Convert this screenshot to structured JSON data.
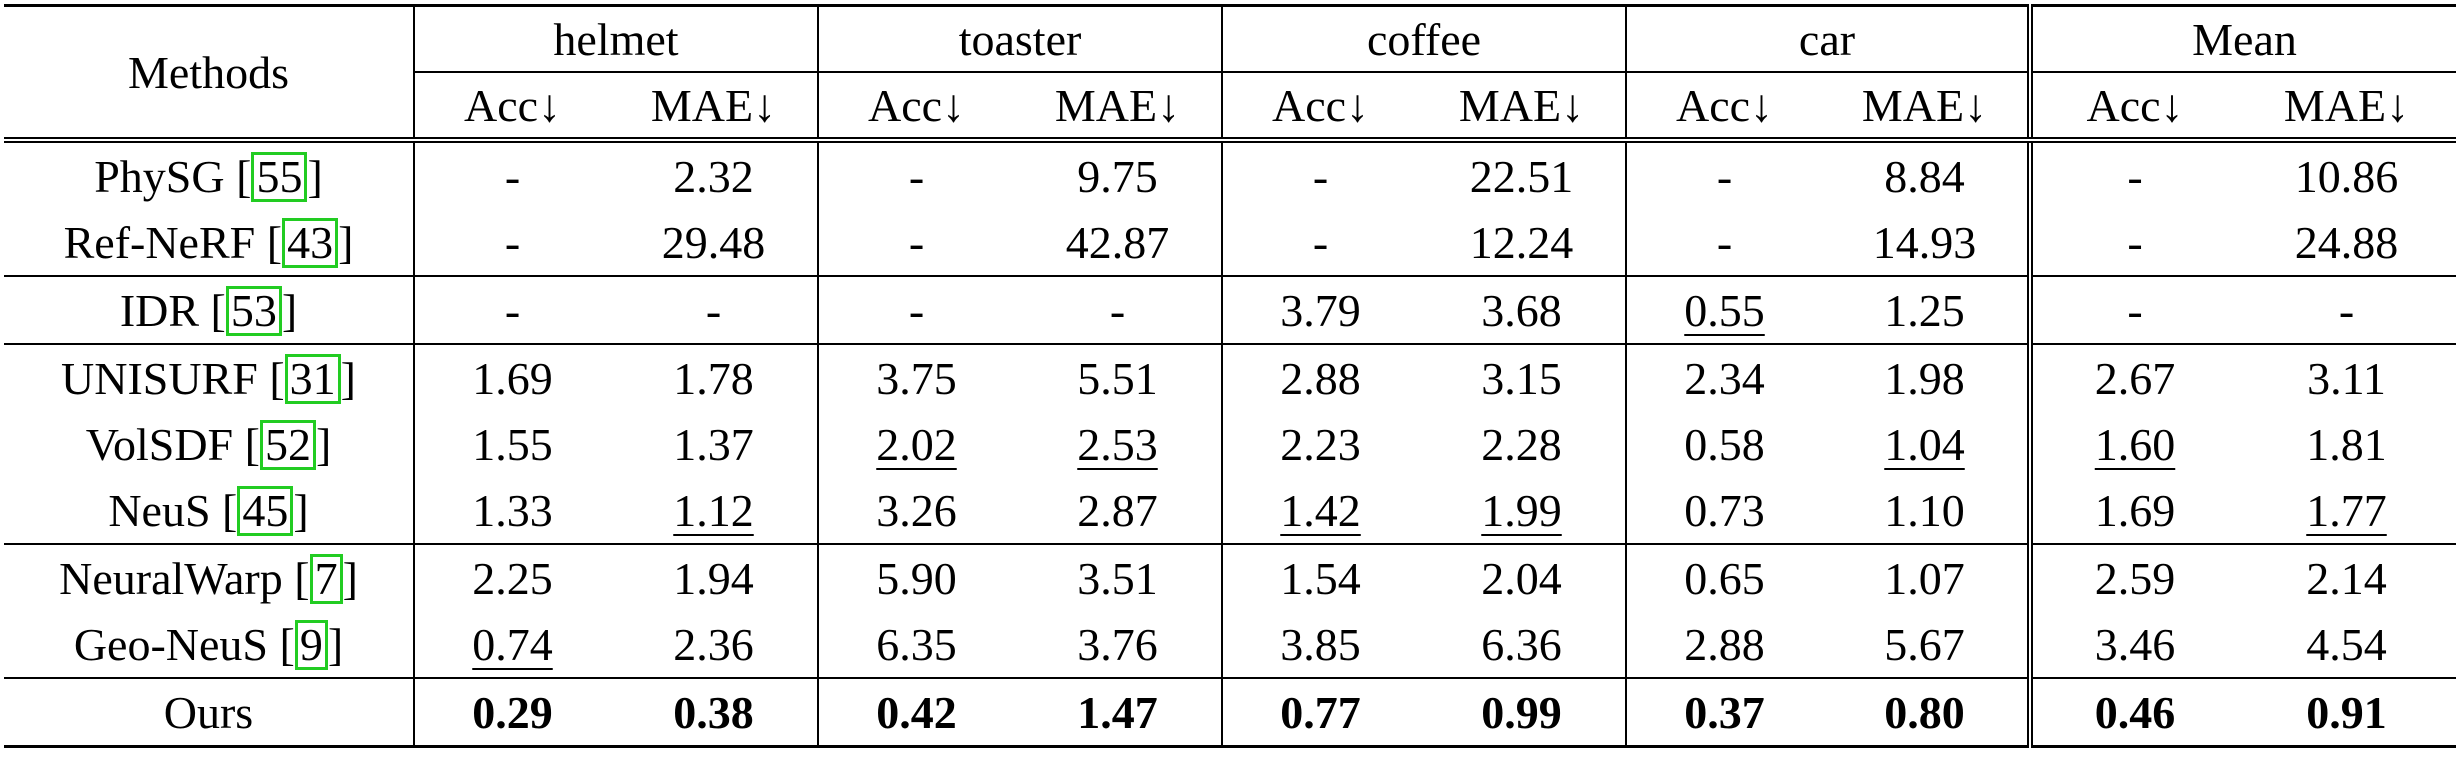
{
  "table": {
    "methods_header": "Methods",
    "groups": [
      "helmet",
      "toaster",
      "coffee",
      "car",
      "Mean"
    ],
    "metrics": [
      "Acc↓",
      "MAE↓"
    ],
    "rows": [
      {
        "name": "PhySG [",
        "ref": "55",
        "close": "]",
        "cells": [
          "-",
          "2.32",
          "-",
          "9.75",
          "-",
          "22.51",
          "-",
          "8.84",
          "-",
          "10.86"
        ],
        "underline": [],
        "bold": []
      },
      {
        "name": "Ref-NeRF [",
        "ref": "43",
        "close": "]",
        "cells": [
          "-",
          "29.48",
          "-",
          "42.87",
          "-",
          "12.24",
          "-",
          "14.93",
          "-",
          "24.88"
        ],
        "underline": [],
        "bold": []
      },
      {
        "name": "IDR [",
        "ref": "53",
        "close": "]",
        "cells": [
          "-",
          "-",
          "-",
          "-",
          "3.79",
          "3.68",
          "0.55",
          "1.25",
          "-",
          "-"
        ],
        "underline": [
          6
        ],
        "bold": []
      },
      {
        "name": "UNISURF [",
        "ref": "31",
        "close": "]",
        "cells": [
          "1.69",
          "1.78",
          "3.75",
          "5.51",
          "2.88",
          "3.15",
          "2.34",
          "1.98",
          "2.67",
          "3.11"
        ],
        "underline": [],
        "bold": []
      },
      {
        "name": "VolSDF [",
        "ref": "52",
        "close": "]",
        "cells": [
          "1.55",
          "1.37",
          "2.02",
          "2.53",
          "2.23",
          "2.28",
          "0.58",
          "1.04",
          "1.60",
          "1.81"
        ],
        "underline": [
          2,
          3,
          7,
          8
        ],
        "bold": []
      },
      {
        "name": "NeuS [",
        "ref": "45",
        "close": "]",
        "cells": [
          "1.33",
          "1.12",
          "3.26",
          "2.87",
          "1.42",
          "1.99",
          "0.73",
          "1.10",
          "1.69",
          "1.77"
        ],
        "underline": [
          1,
          4,
          5,
          9
        ],
        "bold": []
      },
      {
        "name": "NeuralWarp [",
        "ref": "7",
        "close": "]",
        "cells": [
          "2.25",
          "1.94",
          "5.90",
          "3.51",
          "1.54",
          "2.04",
          "0.65",
          "1.07",
          "2.59",
          "2.14"
        ],
        "underline": [],
        "bold": []
      },
      {
        "name": "Geo-NeuS [",
        "ref": "9",
        "close": "]",
        "cells": [
          "0.74",
          "2.36",
          "6.35",
          "3.76",
          "3.85",
          "6.36",
          "2.88",
          "5.67",
          "3.46",
          "4.54"
        ],
        "underline": [
          0
        ],
        "bold": []
      },
      {
        "name": "Ours",
        "ref": "",
        "close": "",
        "cells": [
          "0.29",
          "0.38",
          "0.42",
          "1.47",
          "0.77",
          "0.99",
          "0.37",
          "0.80",
          "0.46",
          "0.91"
        ],
        "underline": [],
        "bold": [
          0,
          1,
          2,
          3,
          4,
          5,
          6,
          7,
          8,
          9
        ]
      }
    ],
    "group_breaks_before": [
      2,
      3,
      6,
      8
    ]
  }
}
